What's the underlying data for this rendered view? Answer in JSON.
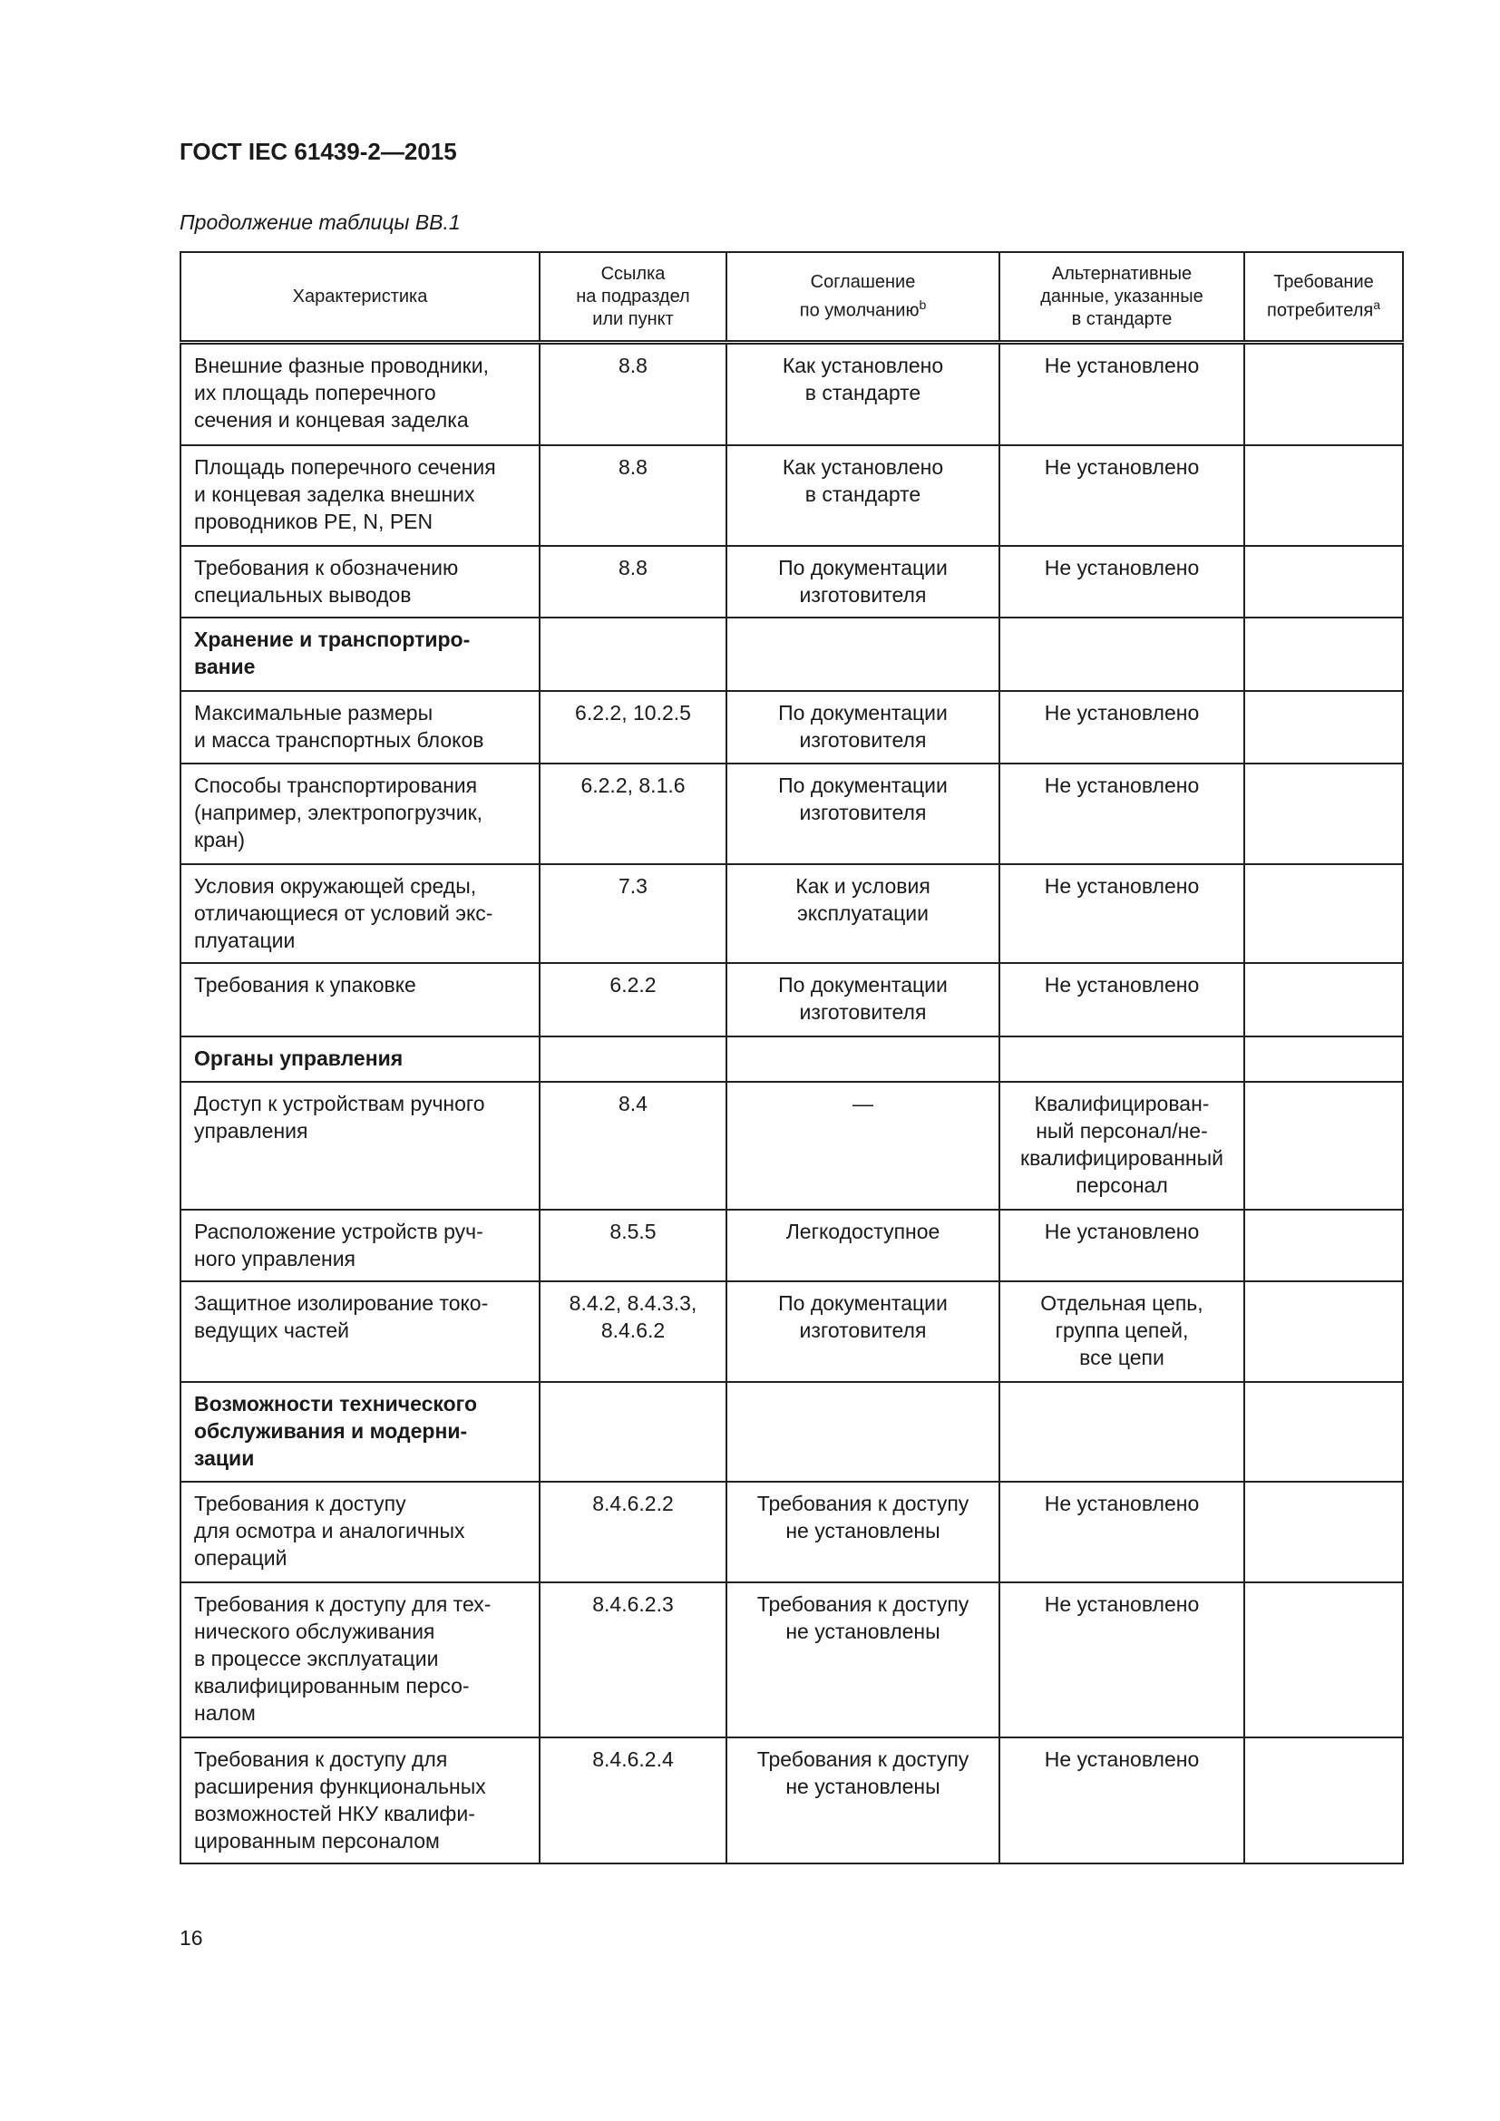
{
  "header": {
    "doc_id": "ГОСТ IEC 61439-2—2015",
    "caption": "Продолжение таблицы ВВ.1"
  },
  "table": {
    "columns": [
      {
        "label": "Характеристика",
        "sup": ""
      },
      {
        "label": "Ссылка\nна подраздел\nили пункт",
        "sup": ""
      },
      {
        "label": "Соглашение\nпо умолчанию",
        "sup": "b"
      },
      {
        "label": "Альтернативные\nданные, указанные\nв стандарте",
        "sup": ""
      },
      {
        "label": "Требование\nпотребителя",
        "sup": "a"
      }
    ],
    "rows": [
      {
        "cells": [
          "Внешние фазные проводники,\nих площадь поперечного\nсечения и концевая заделка",
          "8.8",
          "Как установлено\nв стандарте",
          "Не установлено",
          ""
        ]
      },
      {
        "cells": [
          "Площадь поперечного сечения\nи концевая заделка внешних\nпроводников PE, N, PEN",
          "8.8",
          "Как установлено\nв стандарте",
          "Не установлено",
          ""
        ]
      },
      {
        "cells": [
          "Требования к обозначению\nспециальных выводов",
          "8.8",
          "По документации\nизготовителя",
          "Не установлено",
          ""
        ]
      },
      {
        "section": true,
        "cells": [
          "Хранение и транспортиро-\nвание",
          "",
          "",
          "",
          ""
        ]
      },
      {
        "cells": [
          "Максимальные размеры\nи масса транспортных блоков",
          "6.2.2, 10.2.5",
          "По документации\nизготовителя",
          "Не установлено",
          ""
        ]
      },
      {
        "cells": [
          "Способы транспортирования\n(например, электропогрузчик,\nкран)",
          "6.2.2, 8.1.6",
          "По документации\nизготовителя",
          "Не установлено",
          ""
        ]
      },
      {
        "cells": [
          "Условия окружающей среды,\nотличающиеся от условий экс-\nплуатации",
          "7.3",
          "Как и условия\nэксплуатации",
          "Не установлено",
          ""
        ]
      },
      {
        "cells": [
          "Требования к упаковке",
          "6.2.2",
          "По документации\nизготовителя",
          "Не установлено",
          ""
        ]
      },
      {
        "section": true,
        "cells": [
          "Органы управления",
          "",
          "",
          "",
          ""
        ]
      },
      {
        "cells": [
          "Доступ к устройствам ручного\nуправления",
          "8.4",
          "—",
          "Квалифицирован-\nный персонал/не-\nквалифицированный\nперсонал",
          ""
        ]
      },
      {
        "cells": [
          "Расположение устройств руч-\nного управления",
          "8.5.5",
          "Легкодоступное",
          "Не установлено",
          ""
        ]
      },
      {
        "cells": [
          "Защитное изолирование токо-\nведущих частей",
          "8.4.2, 8.4.3.3,\n8.4.6.2",
          "По документации\nизготовителя",
          "Отдельная цепь,\nгруппа цепей,\nвсе цепи",
          ""
        ]
      },
      {
        "section": true,
        "cells": [
          "Возможности технического\nобслуживания и модерни-\nзации",
          "",
          "",
          "",
          ""
        ]
      },
      {
        "cells": [
          "Требования к доступу\nдля осмотра и аналогичных\nопераций",
          "8.4.6.2.2",
          "Требования к доступу\nне установлены",
          "Не установлено",
          ""
        ]
      },
      {
        "cells": [
          "Требования к доступу для тех-\nнического обслуживания\nв процессе эксплуатации\nквалифицированным персо-\nналом",
          "8.4.6.2.3",
          "Требования к доступу\nне установлены",
          "Не установлено",
          ""
        ]
      },
      {
        "cells": [
          "Требования к доступу для\nрасширения функциональных\nвозможностей НКУ квалифи-\nцированным персоналом",
          "8.4.6.2.4",
          "Требования к доступу\nне установлены",
          "Не установлено",
          ""
        ]
      }
    ]
  },
  "footer": {
    "page_number": "16"
  }
}
